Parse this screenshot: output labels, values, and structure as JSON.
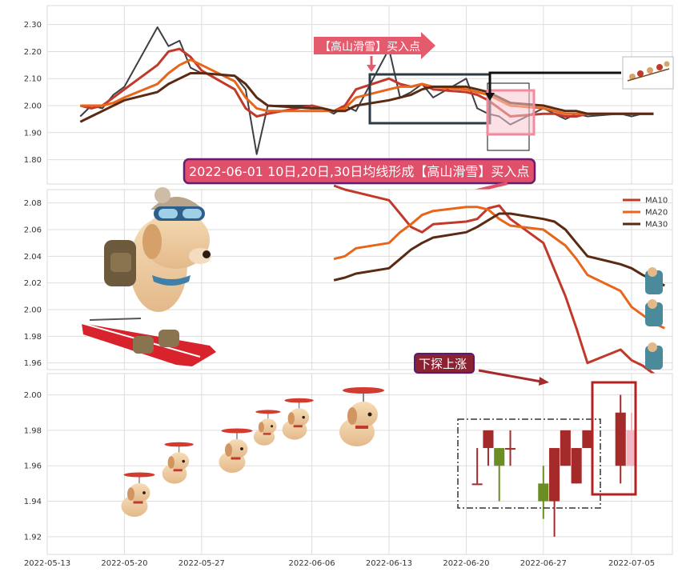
{
  "colors": {
    "close": "#3d3f44",
    "ma10": "#c0392b",
    "ma20": "#e8651a",
    "ma30": "#5a2a12",
    "up": "#a52a2a",
    "down": "#6b8e23",
    "callout_fill": "#e55b6e",
    "callout_border": "#7a1a6a",
    "box_dark": "#2f3a44",
    "box_pink": "#f08a9c"
  },
  "chart_data": [
    {
      "type": "line",
      "panel": "price",
      "x": [
        "2022-05-16",
        "2022-05-17",
        "2022-05-18",
        "2022-05-19",
        "2022-05-20",
        "2022-05-23",
        "2022-05-24",
        "2022-05-25",
        "2022-05-26",
        "2022-05-27",
        "2022-05-30",
        "2022-05-31",
        "2022-06-01",
        "2022-06-02",
        "2022-06-06",
        "2022-06-07",
        "2022-06-08",
        "2022-06-09",
        "2022-06-10",
        "2022-06-13",
        "2022-06-14",
        "2022-06-15",
        "2022-06-16",
        "2022-06-17",
        "2022-06-20",
        "2022-06-21",
        "2022-06-22",
        "2022-06-23",
        "2022-06-24",
        "2022-06-27",
        "2022-06-28",
        "2022-06-29",
        "2022-06-30",
        "2022-07-01",
        "2022-07-04",
        "2022-07-05",
        "2022-07-06",
        "2022-07-07"
      ],
      "series": [
        {
          "key": "close",
          "values": [
            1.96,
            2.0,
            1.99,
            2.04,
            2.07,
            2.29,
            2.22,
            2.24,
            2.14,
            2.12,
            2.11,
            2.06,
            1.82,
            2.0,
            2.0,
            1.99,
            1.97,
            2.0,
            1.98,
            2.21,
            2.03,
            2.05,
            2.08,
            2.03,
            2.1,
            1.99,
            1.97,
            1.96,
            1.93,
            1.99,
            1.97,
            1.95,
            1.97,
            1.96,
            1.97,
            1.96,
            1.97,
            1.97
          ]
        },
        {
          "key": "ma10",
          "values": [
            2.0,
            1.99,
            2.0,
            2.03,
            2.06,
            2.15,
            2.2,
            2.21,
            2.18,
            2.13,
            2.06,
            1.99,
            1.96,
            1.97,
            2.0,
            1.99,
            1.98,
            2.0,
            2.06,
            2.1,
            2.08,
            2.07,
            2.08,
            2.06,
            2.05,
            2.04,
            2.02,
            1.99,
            1.96,
            1.97,
            1.97,
            1.96,
            1.96,
            1.97,
            1.97,
            1.97,
            1.97,
            1.97
          ]
        },
        {
          "key": "ma20",
          "values": [
            2.0,
            2.0,
            2.0,
            2.01,
            2.03,
            2.08,
            2.12,
            2.15,
            2.17,
            2.15,
            2.09,
            2.03,
            1.99,
            1.98,
            1.98,
            1.98,
            1.98,
            1.99,
            2.03,
            2.06,
            2.07,
            2.07,
            2.08,
            2.07,
            2.06,
            2.05,
            2.04,
            2.02,
            2.0,
            1.99,
            1.98,
            1.97,
            1.97,
            1.97,
            1.97,
            1.97,
            1.97,
            1.97
          ]
        },
        {
          "key": "ma30",
          "values": [
            1.94,
            1.96,
            1.98,
            2.0,
            2.02,
            2.05,
            2.08,
            2.1,
            2.12,
            2.12,
            2.11,
            2.08,
            2.03,
            2.0,
            1.99,
            1.99,
            1.98,
            1.98,
            2.0,
            2.02,
            2.03,
            2.04,
            2.06,
            2.07,
            2.07,
            2.06,
            2.05,
            2.03,
            2.01,
            2.0,
            1.99,
            1.98,
            1.98,
            1.97,
            1.97,
            1.97,
            1.97,
            1.97
          ]
        }
      ],
      "ylim": [
        1.71,
        2.37
      ],
      "yticks": [
        1.8,
        1.9,
        2.0,
        2.1,
        2.2,
        2.3
      ],
      "annotations": {
        "top_callout": "【高山滑雪】买入点",
        "main_callout": "2022-06-01 10日,20日,30日均线形成【高山滑雪】买入点"
      },
      "grid": true
    },
    {
      "type": "line",
      "panel": "moving_averages",
      "x": [
        "2022-06-08",
        "2022-06-09",
        "2022-06-10",
        "2022-06-13",
        "2022-06-14",
        "2022-06-15",
        "2022-06-16",
        "2022-06-17",
        "2022-06-20",
        "2022-06-21",
        "2022-06-22",
        "2022-06-23",
        "2022-06-24",
        "2022-06-27",
        "2022-06-28",
        "2022-06-29",
        "2022-06-30",
        "2022-07-01",
        "2022-07-04",
        "2022-07-05",
        "2022-07-06",
        "2022-07-07",
        "2022-07-08"
      ],
      "series": [
        {
          "name": "MA10",
          "key": "ma10",
          "values": [
            2.093,
            2.09,
            2.088,
            2.082,
            2.072,
            2.062,
            2.058,
            2.064,
            2.066,
            2.068,
            2.076,
            2.078,
            2.068,
            2.05,
            2.03,
            2.01,
            1.986,
            1.96,
            1.97,
            1.962,
            1.958,
            1.952,
            1.946
          ]
        },
        {
          "name": "MA20",
          "key": "ma20",
          "values": [
            2.038,
            2.04,
            2.046,
            2.05,
            2.058,
            2.064,
            2.071,
            2.074,
            2.077,
            2.077,
            2.075,
            2.068,
            2.063,
            2.06,
            2.054,
            2.048,
            2.038,
            2.026,
            2.014,
            2.002,
            1.996,
            1.99,
            1.986
          ]
        },
        {
          "name": "MA30",
          "key": "ma30",
          "values": [
            2.022,
            2.024,
            2.027,
            2.031,
            2.038,
            2.045,
            2.05,
            2.054,
            2.058,
            2.062,
            2.067,
            2.072,
            2.072,
            2.068,
            2.066,
            2.06,
            2.05,
            2.04,
            2.034,
            2.031,
            2.026,
            2.022,
            2.018
          ]
        }
      ],
      "ylim": [
        1.955,
        2.09
      ],
      "yticks": [
        1.96,
        1.98,
        2.0,
        2.02,
        2.04,
        2.06,
        2.08
      ],
      "legend": "top-right",
      "grid": true
    },
    {
      "type": "candlestick",
      "panel": "candles",
      "candles": [
        {
          "date": "2022-06-21",
          "open": 1.95,
          "close": 1.95,
          "high": 1.97,
          "low": 1.95,
          "dir": "up"
        },
        {
          "date": "2022-06-22",
          "open": 1.97,
          "close": 1.98,
          "high": 1.98,
          "low": 1.96,
          "dir": "up"
        },
        {
          "date": "2022-06-23",
          "open": 1.97,
          "close": 1.96,
          "high": 1.97,
          "low": 1.94,
          "dir": "down"
        },
        {
          "date": "2022-06-24",
          "open": 1.97,
          "close": 1.97,
          "high": 1.98,
          "low": 1.96,
          "dir": "up"
        },
        {
          "date": "2022-06-27",
          "open": 1.95,
          "close": 1.94,
          "high": 1.96,
          "low": 1.93,
          "dir": "down"
        },
        {
          "date": "2022-06-28",
          "open": 1.94,
          "close": 1.97,
          "high": 1.97,
          "low": 1.92,
          "dir": "up"
        },
        {
          "date": "2022-06-29",
          "open": 1.96,
          "close": 1.98,
          "high": 1.98,
          "low": 1.96,
          "dir": "up"
        },
        {
          "date": "2022-06-30",
          "open": 1.95,
          "close": 1.97,
          "high": 1.97,
          "low": 1.95,
          "dir": "up"
        },
        {
          "date": "2022-07-01",
          "open": 1.97,
          "close": 1.98,
          "high": 1.98,
          "low": 1.97,
          "dir": "up"
        },
        {
          "date": "2022-07-04",
          "open": 1.96,
          "close": 1.99,
          "high": 2.0,
          "low": 1.95,
          "dir": "up"
        },
        {
          "date": "2022-07-05",
          "open": 1.96,
          "close": 1.98,
          "high": 1.99,
          "low": 1.96,
          "dir": "pending"
        }
      ],
      "ylim": [
        1.91,
        2.012
      ],
      "yticks": [
        1.92,
        1.94,
        1.96,
        1.98,
        2.0
      ],
      "xticks": [
        "2022-05-13",
        "2022-05-20",
        "2022-05-27",
        "2022-06-06",
        "2022-06-13",
        "2022-06-20",
        "2022-06-27",
        "2022-07-05"
      ],
      "annotations": {
        "probe_callout": "下探上涨"
      },
      "grid": true
    }
  ]
}
